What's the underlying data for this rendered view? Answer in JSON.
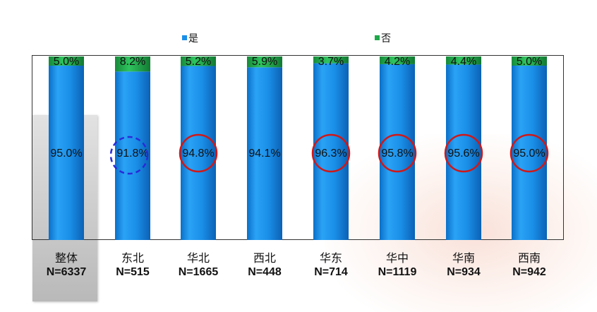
{
  "chart_data": {
    "type": "bar",
    "stacked": true,
    "percent": true,
    "categories": [
      "整体",
      "东北",
      "华北",
      "西北",
      "华东",
      "华中",
      "华南",
      "西南"
    ],
    "sample_sizes": [
      "N=6337",
      "N=515",
      "N=1665",
      "N=448",
      "N=714",
      "N=1119",
      "N=934",
      "N=942"
    ],
    "series": [
      {
        "name": "是",
        "color": "#1a8fe8",
        "values": [
          95.0,
          91.8,
          94.8,
          94.1,
          96.3,
          95.8,
          95.6,
          95.0
        ],
        "labels": [
          "95.0%",
          "91.8%",
          "94.8%",
          "94.1%",
          "96.3%",
          "95.8%",
          "95.6%",
          "95.0%"
        ]
      },
      {
        "name": "否",
        "color": "#1ea84a",
        "values": [
          5.0,
          8.2,
          5.2,
          5.9,
          3.7,
          4.2,
          4.4,
          5.0
        ],
        "labels": [
          "5.0%",
          "8.2%",
          "5.2%",
          "5.9%",
          "3.7%",
          "4.2%",
          "4.4%",
          "5.0%"
        ]
      }
    ],
    "ylim": [
      0,
      100
    ],
    "legend_position": "top",
    "grid": false,
    "highlighted_category": "整体",
    "circled_categories": {
      "red_solid": [
        "华北",
        "华东",
        "华中",
        "华南",
        "西南"
      ],
      "blue_dashed": [
        "东北"
      ]
    }
  }
}
